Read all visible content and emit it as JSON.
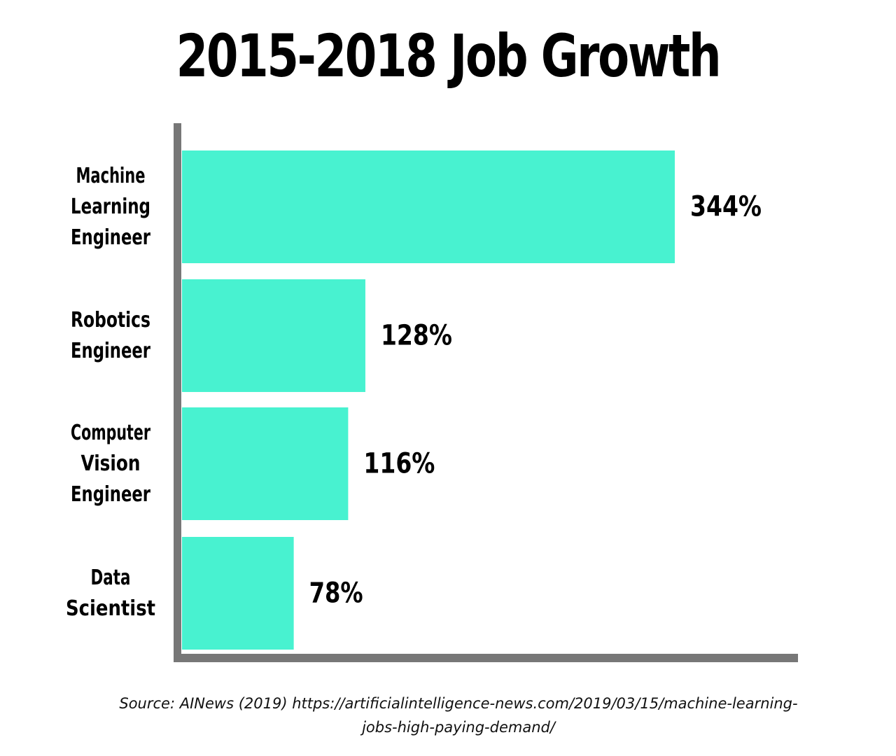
{
  "chart_data": {
    "type": "bar",
    "orientation": "horizontal",
    "title": "2015-2018 Job Growth",
    "categories": [
      [
        "Machine",
        "Learning",
        "Engineer"
      ],
      [
        "Robotics",
        "Engineer"
      ],
      [
        "Computer",
        "Vision",
        "Engineer"
      ],
      [
        "Data",
        "Scientist"
      ]
    ],
    "values": [
      344,
      128,
      116,
      78
    ],
    "value_labels": [
      "344%",
      "128%",
      "116%",
      "78%"
    ],
    "unit": "%",
    "xlabel": "",
    "ylabel": "",
    "grid": false,
    "legend": "none",
    "colors": {
      "bar": "#48F2D0",
      "axis": "#777777",
      "text": "#000000"
    }
  },
  "source": "Source: AINews (2019) https://artificialintelligence-news.com/2019/03/15/machine-learning-jobs-high-paying-demand/"
}
